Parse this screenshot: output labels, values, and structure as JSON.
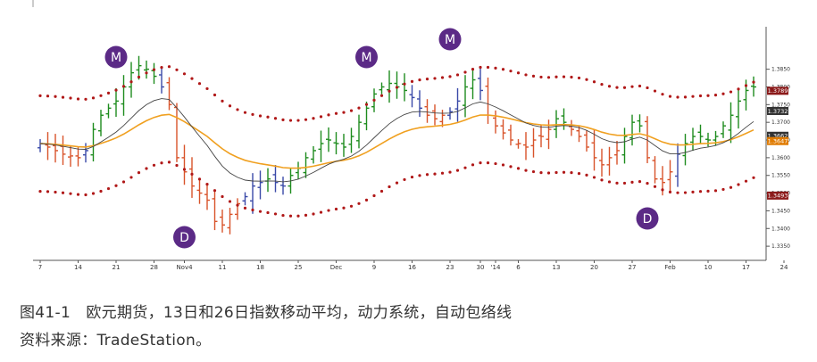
{
  "caption": {
    "line1": "图41-1　欧元期货，13日和26日指数移动平均，动力系统，自动包络线",
    "line2": "资料来源：TradeStation。"
  },
  "chart_data": {
    "type": "ohlc",
    "title": "",
    "xlabel": "",
    "ylabel": "",
    "ylim": [
      1.331,
      1.397
    ],
    "x_tick_labels": [
      {
        "bar": 0,
        "label": "7"
      },
      {
        "bar": 5,
        "label": "14"
      },
      {
        "bar": 10,
        "label": "21"
      },
      {
        "bar": 15,
        "label": "28"
      },
      {
        "bar": 19,
        "label": "Nov4"
      },
      {
        "bar": 24,
        "label": "11"
      },
      {
        "bar": 29,
        "label": "18"
      },
      {
        "bar": 34,
        "label": "25"
      },
      {
        "bar": 39,
        "label": "Dec"
      },
      {
        "bar": 44,
        "label": "9"
      },
      {
        "bar": 49,
        "label": "16"
      },
      {
        "bar": 54,
        "label": "23"
      },
      {
        "bar": 58,
        "label": "30"
      },
      {
        "bar": 60,
        "label": "'14"
      },
      {
        "bar": 63,
        "label": "6"
      },
      {
        "bar": 68,
        "label": "13"
      },
      {
        "bar": 73,
        "label": "20"
      },
      {
        "bar": 78,
        "label": "27"
      },
      {
        "bar": 83,
        "label": "Feb"
      },
      {
        "bar": 88,
        "label": "10"
      },
      {
        "bar": 93,
        "label": "17"
      },
      {
        "bar": 98,
        "label": "24"
      }
    ],
    "y_ticks": [
      "1.3850",
      "1.3800",
      "1.3750",
      "1.3700",
      "1.3650",
      "1.3600",
      "1.3550",
      "1.3500",
      "1.3450",
      "1.3400",
      "1.3350"
    ],
    "price_labels": [
      {
        "value": "1.3789",
        "color": "#8b1a1a"
      },
      {
        "value": "1.3732",
        "color": "#333333"
      },
      {
        "value": "1.3662",
        "color": "#333333"
      },
      {
        "value": "1.3647",
        "color": "#e07b00"
      },
      {
        "value": "1.3493",
        "color": "#8b1a1a"
      }
    ],
    "markers": [
      {
        "letter": "M",
        "bar": 10
      },
      {
        "letter": "D",
        "bar": 19
      },
      {
        "letter": "M",
        "bar": 43
      },
      {
        "letter": "M",
        "bar": 54
      },
      {
        "letter": "D",
        "bar": 80
      }
    ],
    "closes": [
      1.364,
      1.363,
      1.362,
      1.361,
      1.3605,
      1.36,
      1.362,
      1.368,
      1.372,
      1.374,
      1.376,
      1.38,
      1.384,
      1.386,
      1.385,
      1.383,
      1.38,
      1.375,
      1.36,
      1.356,
      1.352,
      1.35,
      1.348,
      1.342,
      1.341,
      1.344,
      1.347,
      1.349,
      1.352,
      1.353,
      1.354,
      1.353,
      1.352,
      1.355,
      1.357,
      1.36,
      1.362,
      1.364,
      1.365,
      1.364,
      1.363,
      1.366,
      1.37,
      1.374,
      1.378,
      1.38,
      1.381,
      1.38,
      1.379,
      1.377,
      1.374,
      1.372,
      1.371,
      1.372,
      1.373,
      1.376,
      1.38,
      1.382,
      1.379,
      1.372,
      1.369,
      1.367,
      1.365,
      1.364,
      1.363,
      1.365,
      1.366,
      1.368,
      1.371,
      1.37,
      1.368,
      1.366,
      1.363,
      1.36,
      1.358,
      1.36,
      1.362,
      1.366,
      1.37,
      1.369,
      1.36,
      1.354,
      1.353,
      1.356,
      1.361,
      1.364,
      1.366,
      1.366,
      1.365,
      1.366,
      1.369,
      1.372,
      1.376,
      1.379,
      1.38
    ],
    "series": [
      {
        "name": "EMA 13",
        "color": "#444444"
      },
      {
        "name": "EMA 26",
        "color": "#f0a020"
      },
      {
        "name": "Upper envelope",
        "color": "#b01818"
      },
      {
        "name": "Lower envelope",
        "color": "#b01818"
      }
    ],
    "colors": {
      "impulse_up": "#1e8c1e",
      "impulse_down": "#d8532a",
      "impulse_neutral": "#3a4aa8",
      "marker": "#5b2a86",
      "envelope": "#b01818"
    },
    "grid": false,
    "legend": "none"
  }
}
